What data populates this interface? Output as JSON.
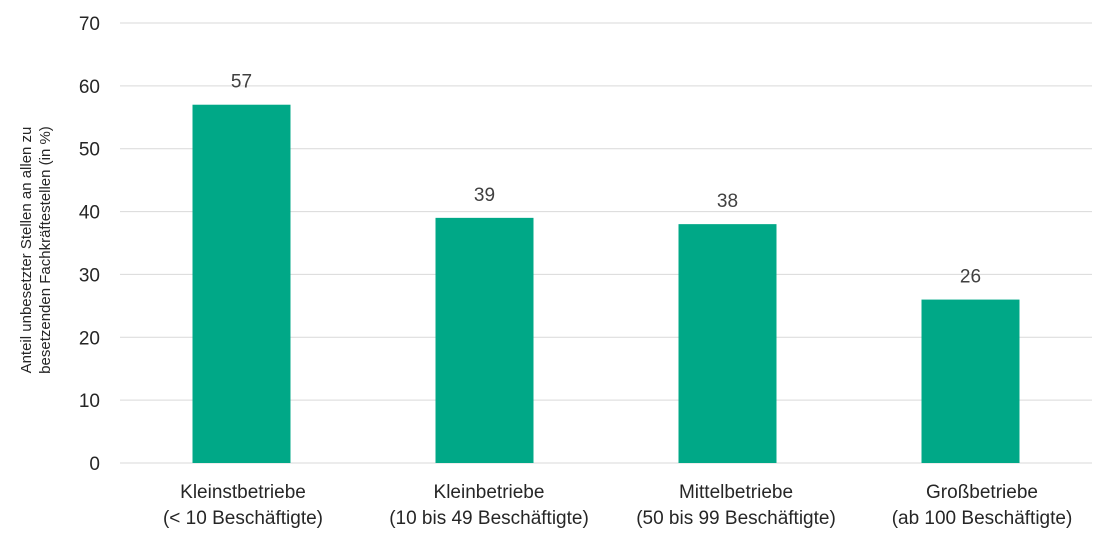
{
  "chart_data": {
    "type": "bar",
    "categories": [
      {
        "line1": "Kleinstbetriebe",
        "line2": "(< 10 Beschäftigte)"
      },
      {
        "line1": "Kleinbetriebe",
        "line2": "(10 bis 49 Beschäftigte)"
      },
      {
        "line1": "Mittelbetriebe",
        "line2": "(50 bis 99 Beschäftigte)"
      },
      {
        "line1": "Großbetriebe",
        "line2": "(ab 100 Beschäftigte)"
      }
    ],
    "values": [
      57,
      39,
      38,
      26
    ],
    "ylabel_line1": "Anteil unbesetzter Stellen an allen zu",
    "ylabel_line2": "besetzenden Fachkräftestellen (in %)",
    "ylim": [
      0,
      70
    ],
    "yticks": [
      0,
      10,
      20,
      30,
      40,
      50,
      60,
      70
    ],
    "grid": true,
    "bar_color": "#00A887",
    "gridline_color": "#d9d9d9"
  }
}
